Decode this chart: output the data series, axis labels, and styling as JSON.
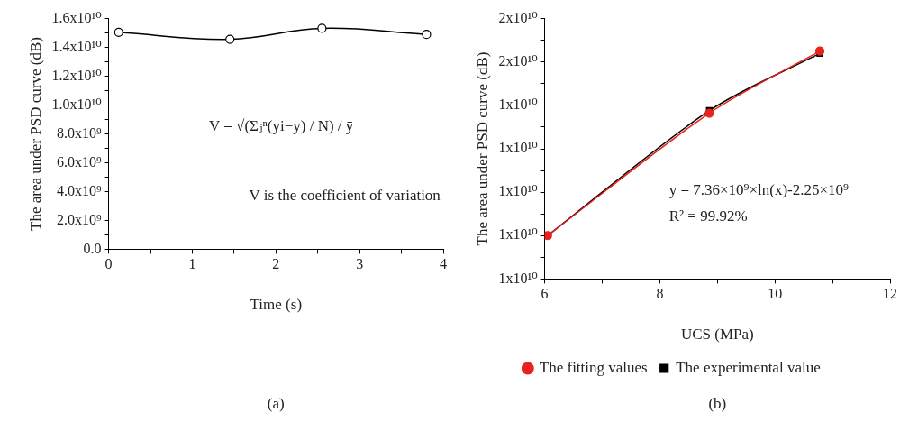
{
  "chart_data": [
    {
      "type": "line",
      "xlabel": "Time (s)",
      "ylabel": "The area under PSD curve (dB)",
      "x": [
        0.12,
        1.45,
        2.55,
        3.8
      ],
      "series": [
        {
          "color": "#000000",
          "values": [
            15050000000.0,
            14560000000.0,
            15320000000.0,
            14900000000.0
          ]
        }
      ],
      "xlim": [
        0,
        4
      ],
      "xticks": [
        0,
        {
          "value": 0.5,
          "label": null
        },
        1,
        {
          "value": 1.5,
          "label": null
        },
        2,
        {
          "value": 2.5,
          "label": null
        },
        3,
        {
          "value": 3.5,
          "label": null
        },
        4
      ],
      "ylim": [
        0,
        16000000000.0
      ],
      "yticks": [
        {
          "value": 0,
          "label": "0.0"
        },
        {
          "value": 1000000000.0,
          "label": null
        },
        {
          "value": 2000000000.0,
          "label": "2.0x10⁹"
        },
        {
          "value": 3000000000.0,
          "label": null
        },
        {
          "value": 4000000000.0,
          "label": "4.0x10⁹"
        },
        {
          "value": 5000000000.0,
          "label": null
        },
        {
          "value": 6000000000.0,
          "label": "6.0x10⁹"
        },
        {
          "value": 7000000000.0,
          "label": null
        },
        {
          "value": 8000000000.0,
          "label": "8.0x10⁹"
        },
        {
          "value": 9000000000.0,
          "label": null
        },
        {
          "value": 10000000000.0,
          "label": "1.0x10¹⁰"
        },
        {
          "value": 11000000000.0,
          "label": null
        },
        {
          "value": 12000000000.0,
          "label": "1.2x10¹⁰"
        },
        {
          "value": 13000000000.0,
          "label": null
        },
        {
          "value": 14000000000.0,
          "label": "1.4x10¹⁰"
        },
        {
          "value": 15000000000.0,
          "label": null
        },
        {
          "value": 16000000000.0,
          "label": "1.6x10¹⁰"
        }
      ],
      "grid": false,
      "legend": false,
      "marker": "circle",
      "annotations": [
        "V = √(Σⱼⁿ(yi−y) / N) / ȳ",
        "V is the coefficient of variation",
        "(a)"
      ]
    },
    {
      "type": "line",
      "xlabel": "UCS (MPa)",
      "ylabel": "The area under PSD curve (dB)",
      "x": [
        6.05,
        8.86,
        10.78
      ],
      "series": [
        {
          "name": "The experimental value",
          "color": "#000000",
          "marker": "square",
          "values": [
            11000000000.0,
            13880000000.0,
            15200000000.0
          ]
        },
        {
          "name": "The fitting values",
          "color": "#e8231c",
          "marker": "circle",
          "values": [
            11000000000.0,
            13820000000.0,
            15250000000.0
          ]
        }
      ],
      "xlim": [
        6,
        12
      ],
      "xticks": [
        6,
        {
          "value": 7,
          "label": null
        },
        8,
        {
          "value": 9,
          "label": null
        },
        10,
        {
          "value": 11,
          "label": null
        },
        12
      ],
      "ylim": [
        10000000000.0,
        16000000000.0
      ],
      "yticks": [
        {
          "value": 10000000000.0,
          "label": "1x10¹⁰"
        },
        {
          "value": 10500000000.0,
          "label": null
        },
        {
          "value": 11000000000.0,
          "label": "1x10¹⁰"
        },
        {
          "value": 11500000000.0,
          "label": null
        },
        {
          "value": 12000000000.0,
          "label": "1x10¹⁰"
        },
        {
          "value": 12500000000.0,
          "label": null
        },
        {
          "value": 13000000000.0,
          "label": "1x10¹⁰"
        },
        {
          "value": 13500000000.0,
          "label": null
        },
        {
          "value": 14000000000.0,
          "label": "1x10¹⁰"
        },
        {
          "value": 14500000000.0,
          "label": null
        },
        {
          "value": 15000000000.0,
          "label": "2x10¹⁰"
        },
        {
          "value": 15500000000.0,
          "label": null
        },
        {
          "value": 16000000000.0,
          "label": "2x10¹⁰"
        }
      ],
      "grid": false,
      "legend": "bottom",
      "annotations": [
        "y = 7.36×10⁹×ln(x)-2.25×10⁹",
        "R² = 99.92%",
        "(b)"
      ]
    }
  ]
}
